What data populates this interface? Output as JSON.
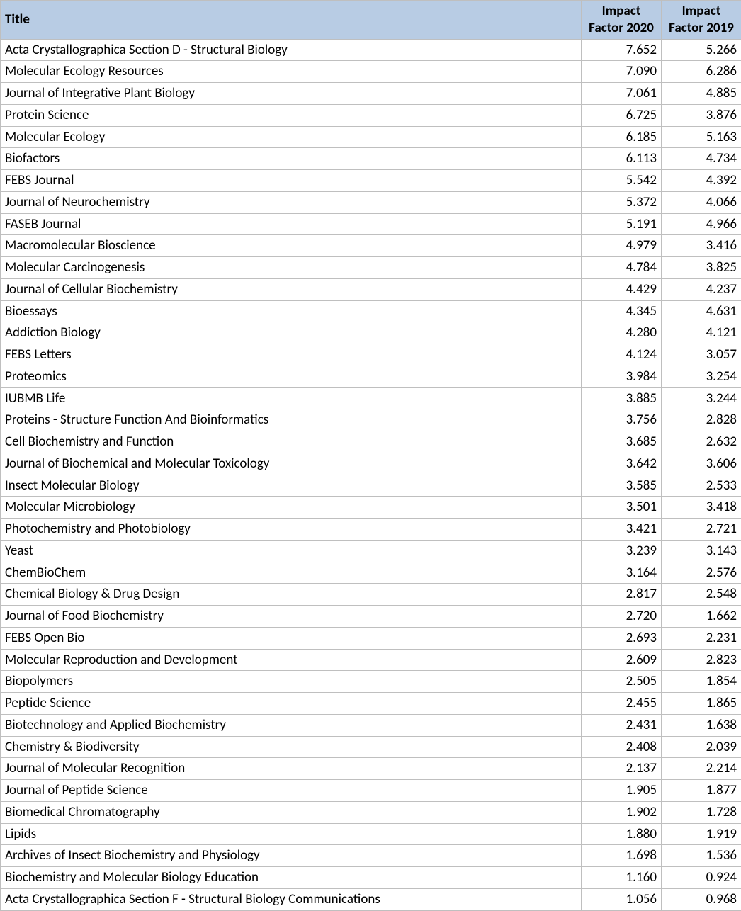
{
  "table": {
    "columns": [
      {
        "key": "title",
        "label": "Title",
        "class": "col-title"
      },
      {
        "key": "if2020",
        "label": "Impact Factor 2020",
        "class": "col-num"
      },
      {
        "key": "if2019",
        "label": "Impact Factor 2019",
        "class": "col-num"
      }
    ],
    "header_bg": "#b8cce4",
    "border_color": "#bfbfbf",
    "rows": [
      {
        "title": "Acta Crystallographica Section D - Structural Biology",
        "if2020": "7.652",
        "if2019": "5.266"
      },
      {
        "title": "Molecular Ecology Resources",
        "if2020": "7.090",
        "if2019": "6.286"
      },
      {
        "title": "Journal of Integrative Plant Biology",
        "if2020": "7.061",
        "if2019": "4.885"
      },
      {
        "title": "Protein Science",
        "if2020": "6.725",
        "if2019": "3.876"
      },
      {
        "title": "Molecular Ecology",
        "if2020": "6.185",
        "if2019": "5.163"
      },
      {
        "title": "Biofactors",
        "if2020": "6.113",
        "if2019": "4.734"
      },
      {
        "title": "FEBS Journal",
        "if2020": "5.542",
        "if2019": "4.392"
      },
      {
        "title": "Journal of Neurochemistry",
        "if2020": "5.372",
        "if2019": "4.066"
      },
      {
        "title": "FASEB Journal",
        "if2020": "5.191",
        "if2019": "4.966"
      },
      {
        "title": "Macromolecular Bioscience",
        "if2020": "4.979",
        "if2019": "3.416"
      },
      {
        "title": "Molecular Carcinogenesis",
        "if2020": "4.784",
        "if2019": "3.825"
      },
      {
        "title": "Journal of Cellular Biochemistry",
        "if2020": "4.429",
        "if2019": "4.237"
      },
      {
        "title": "Bioessays",
        "if2020": "4.345",
        "if2019": "4.631"
      },
      {
        "title": "Addiction Biology",
        "if2020": "4.280",
        "if2019": "4.121"
      },
      {
        "title": "FEBS Letters",
        "if2020": "4.124",
        "if2019": "3.057"
      },
      {
        "title": "Proteomics",
        "if2020": "3.984",
        "if2019": "3.254"
      },
      {
        "title": "IUBMB Life",
        "if2020": "3.885",
        "if2019": "3.244"
      },
      {
        "title": "Proteins - Structure Function And Bioinformatics",
        "if2020": "3.756",
        "if2019": "2.828"
      },
      {
        "title": "Cell Biochemistry and Function",
        "if2020": "3.685",
        "if2019": "2.632"
      },
      {
        "title": "Journal of Biochemical and Molecular Toxicology",
        "if2020": "3.642",
        "if2019": "3.606"
      },
      {
        "title": "Insect Molecular Biology",
        "if2020": "3.585",
        "if2019": "2.533"
      },
      {
        "title": "Molecular Microbiology",
        "if2020": "3.501",
        "if2019": "3.418"
      },
      {
        "title": "Photochemistry and Photobiology",
        "if2020": "3.421",
        "if2019": "2.721"
      },
      {
        "title": "Yeast",
        "if2020": "3.239",
        "if2019": "3.143"
      },
      {
        "title": "ChemBioChem",
        "if2020": "3.164",
        "if2019": "2.576"
      },
      {
        "title": "Chemical Biology & Drug Design",
        "if2020": "2.817",
        "if2019": "2.548"
      },
      {
        "title": "Journal of Food Biochemistry",
        "if2020": "2.720",
        "if2019": "1.662"
      },
      {
        "title": "FEBS Open Bio",
        "if2020": "2.693",
        "if2019": "2.231"
      },
      {
        "title": "Molecular Reproduction and Development",
        "if2020": "2.609",
        "if2019": "2.823"
      },
      {
        "title": "Biopolymers",
        "if2020": "2.505",
        "if2019": "1.854"
      },
      {
        "title": "Peptide Science",
        "if2020": "2.455",
        "if2019": "1.865"
      },
      {
        "title": "Biotechnology and Applied Biochemistry",
        "if2020": "2.431",
        "if2019": "1.638"
      },
      {
        "title": "Chemistry & Biodiversity",
        "if2020": "2.408",
        "if2019": "2.039"
      },
      {
        "title": "Journal of Molecular Recognition",
        "if2020": "2.137",
        "if2019": "2.214"
      },
      {
        "title": "Journal of Peptide Science",
        "if2020": "1.905",
        "if2019": "1.877"
      },
      {
        "title": "Biomedical Chromatography",
        "if2020": "1.902",
        "if2019": "1.728"
      },
      {
        "title": "Lipids",
        "if2020": "1.880",
        "if2019": "1.919"
      },
      {
        "title": "Archives of Insect Biochemistry and Physiology",
        "if2020": "1.698",
        "if2019": "1.536"
      },
      {
        "title": "Biochemistry and Molecular Biology Education",
        "if2020": "1.160",
        "if2019": "0.924"
      },
      {
        "title": "Acta Crystallographica Section F - Structural Biology Communications",
        "if2020": "1.056",
        "if2019": "0.968"
      }
    ]
  }
}
